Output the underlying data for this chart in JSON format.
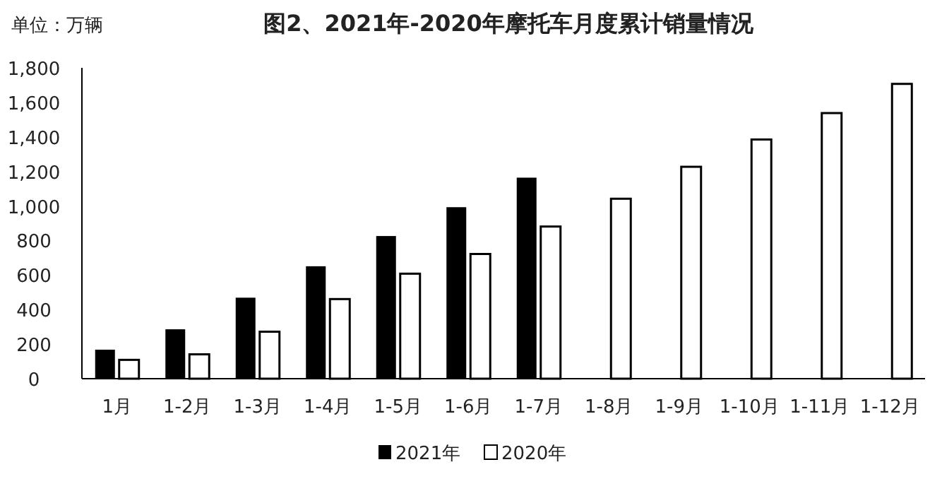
{
  "chart_data": {
    "type": "bar",
    "title": "图2、2021年-2020年摩托车月度累计销量情况",
    "annotations": [
      "单位：万辆"
    ],
    "categories": [
      "1月",
      "1-2月",
      "1-3月",
      "1-4月",
      "1-5月",
      "1-6月",
      "1-7月",
      "1-8月",
      "1-9月",
      "1-10月",
      "1-11月",
      "1-12月"
    ],
    "series": [
      {
        "name": "2021年",
        "color": "#000000",
        "values": [
          168,
          286,
          469,
          651,
          826,
          993,
          1164,
          null,
          null,
          null,
          null,
          null
        ]
      },
      {
        "name": "2020年",
        "color": "#ffffff",
        "values": [
          109,
          141,
          272,
          461,
          608,
          722,
          881,
          1042,
          1227,
          1385,
          1538,
          1707
        ]
      }
    ],
    "ylim": [
      0,
      1800
    ],
    "yticks": [
      0,
      200,
      400,
      600,
      800,
      {
        "value": 1000,
        "label": "1,000"
      },
      {
        "value": 1200,
        "label": "1,200"
      },
      {
        "value": 1400,
        "label": "1,400"
      },
      {
        "value": 1600,
        "label": "1,600"
      },
      {
        "value": 1800,
        "label": "1,800"
      }
    ],
    "grid": false,
    "legend": "bottom"
  }
}
